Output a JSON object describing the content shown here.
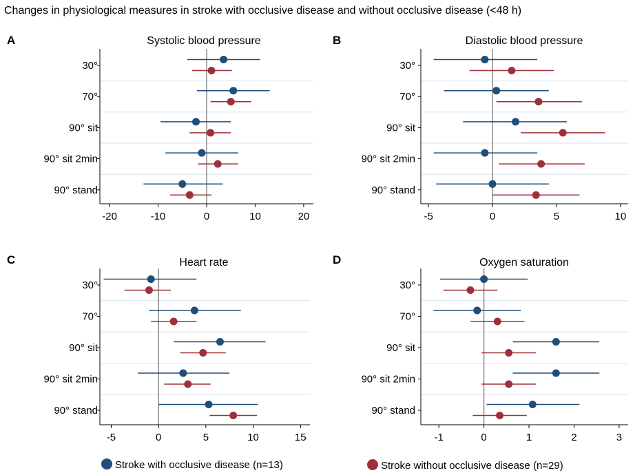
{
  "figure_title": "Changes in physiological measures in stroke with occlusive disease and without occlusive disease (<48 h)",
  "colors": {
    "occlusive": "#1f4e79",
    "non_occlusive": "#9e3039",
    "band_line": "#d5e3ec",
    "zero_line": "#7a7a7a",
    "axis": "#000000"
  },
  "legend": {
    "occlusive_label": "Stroke with occlusive disease (n=13)",
    "non_occlusive_label": "Stroke without occlusive disease (n=29)"
  },
  "chart_data": [
    {
      "type": "forest",
      "panel": "A",
      "title": "Systolic blood pressure",
      "categories": [
        "30°",
        "70°",
        "90° sit",
        "90° sit 2min",
        "90° stand"
      ],
      "xlim": [
        -22,
        22
      ],
      "xticks": [
        -20,
        -10,
        0,
        10,
        20
      ],
      "tick_labels": [
        "-20",
        "-10",
        "0",
        "10",
        "20"
      ],
      "series": [
        {
          "name": "Stroke with occlusive disease (n=13)",
          "estimates": [
            3.5,
            5.5,
            -2.2,
            -1.0,
            -5.0
          ],
          "lower": [
            -4.0,
            -2.0,
            -9.5,
            -8.5,
            -13.0
          ],
          "upper": [
            11.0,
            13.0,
            5.0,
            6.5,
            3.3
          ]
        },
        {
          "name": "Stroke without occlusive disease (n=29)",
          "estimates": [
            1.0,
            5.0,
            0.8,
            2.3,
            -3.5
          ],
          "lower": [
            -3.0,
            0.8,
            -3.5,
            -1.8,
            -7.5
          ],
          "upper": [
            5.2,
            9.2,
            5.0,
            6.5,
            1.0
          ]
        }
      ]
    },
    {
      "type": "forest",
      "panel": "B",
      "title": "Diastolic blood pressure",
      "categories": [
        "30°",
        "70°",
        "90° sit",
        "90° sit 2min",
        "90° stand"
      ],
      "xlim": [
        -5.6,
        10.6
      ],
      "xticks": [
        -5,
        0,
        5,
        10
      ],
      "tick_labels": [
        "-5",
        "0",
        "5",
        "10"
      ],
      "series": [
        {
          "name": "Stroke with occlusive disease (n=13)",
          "estimates": [
            -0.6,
            0.3,
            1.8,
            -0.6,
            0.0
          ],
          "lower": [
            -4.6,
            -3.8,
            -2.3,
            -4.6,
            -4.4
          ],
          "upper": [
            3.5,
            4.4,
            5.8,
            3.5,
            4.4
          ]
        },
        {
          "name": "Stroke without occlusive disease (n=29)",
          "estimates": [
            1.5,
            3.6,
            5.5,
            3.8,
            3.4
          ],
          "lower": [
            -1.8,
            0.3,
            2.2,
            0.5,
            0.0
          ],
          "upper": [
            4.8,
            7.0,
            8.8,
            7.2,
            6.8
          ]
        }
      ]
    },
    {
      "type": "forest",
      "panel": "C",
      "title": "Heart rate",
      "categories": [
        "30°",
        "70°",
        "90° sit",
        "90° sit 2min",
        "90° stand"
      ],
      "xlim": [
        -6.2,
        16
      ],
      "xticks": [
        -5,
        0,
        5,
        10,
        15
      ],
      "tick_labels": [
        "-5",
        "0",
        "5",
        "10",
        "15"
      ],
      "series": [
        {
          "name": "Stroke with occlusive disease (n=13)",
          "estimates": [
            -0.8,
            3.8,
            6.5,
            2.6,
            5.3
          ],
          "lower": [
            -5.8,
            -1.0,
            1.6,
            -2.2,
            0.0
          ],
          "upper": [
            4.0,
            8.7,
            11.3,
            7.5,
            10.5
          ]
        },
        {
          "name": "Stroke without occlusive disease (n=29)",
          "estimates": [
            -1.0,
            1.6,
            4.7,
            3.1,
            7.9
          ],
          "lower": [
            -3.6,
            -0.8,
            2.3,
            0.6,
            5.4
          ],
          "upper": [
            1.3,
            4.0,
            7.1,
            5.5,
            10.4
          ]
        }
      ]
    },
    {
      "type": "forest",
      "panel": "D",
      "title": "Oxygen saturation",
      "categories": [
        "30°",
        "70°",
        "90° sit",
        "90° sit 2min",
        "90° stand"
      ],
      "xlim": [
        -1.4,
        3.2
      ],
      "xticks": [
        -1,
        0,
        1,
        2,
        3
      ],
      "tick_labels": [
        "-1",
        "0",
        "1",
        "2",
        "3"
      ],
      "series": [
        {
          "name": "Stroke with occlusive disease (n=13)",
          "estimates": [
            0.0,
            -0.15,
            1.6,
            1.6,
            1.08
          ],
          "lower": [
            -0.97,
            -1.12,
            0.64,
            0.64,
            0.06
          ],
          "upper": [
            0.97,
            0.82,
            2.56,
            2.56,
            2.12
          ]
        },
        {
          "name": "Stroke without occlusive disease (n=29)",
          "estimates": [
            -0.3,
            0.3,
            0.55,
            0.55,
            0.35
          ],
          "lower": [
            -0.9,
            -0.3,
            -0.05,
            -0.05,
            -0.25
          ],
          "upper": [
            0.3,
            0.9,
            1.15,
            1.15,
            0.95
          ]
        }
      ]
    }
  ]
}
